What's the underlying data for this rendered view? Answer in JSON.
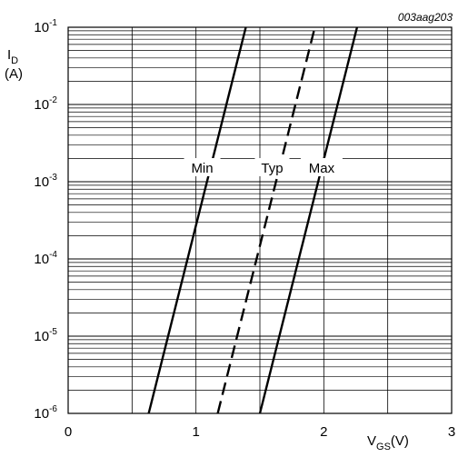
{
  "chart_data": {
    "type": "line",
    "doc_id": "003aag203",
    "xlim": [
      0,
      3
    ],
    "ylim": [
      1e-06,
      0.1
    ],
    "y_scale": "log",
    "grid": true,
    "x_ticks": [
      "0",
      "1",
      "2",
      "3"
    ],
    "y_ticks": [
      {
        "base": "10",
        "exp": "-6"
      },
      {
        "base": "10",
        "exp": "-5"
      },
      {
        "base": "10",
        "exp": "-4"
      },
      {
        "base": "10",
        "exp": "-3"
      },
      {
        "base": "10",
        "exp": "-2"
      },
      {
        "base": "10",
        "exp": "-1"
      }
    ],
    "ylabel": {
      "main": "I",
      "sub": "D",
      "unit": "(A)"
    },
    "xlabel": {
      "main": "V",
      "sub": "GS",
      "unit": "(V)"
    },
    "series": [
      {
        "name": "Min",
        "style": "solid",
        "x": [
          0.63,
          1.39
        ],
        "y": [
          1e-06,
          0.1
        ]
      },
      {
        "name": "Typ",
        "style": "dashed",
        "x": [
          1.17,
          1.93
        ],
        "y": [
          1e-06,
          0.1
        ]
      },
      {
        "name": "Max",
        "style": "solid",
        "x": [
          1.5,
          2.26
        ],
        "y": [
          1e-06,
          0.1
        ]
      }
    ]
  }
}
